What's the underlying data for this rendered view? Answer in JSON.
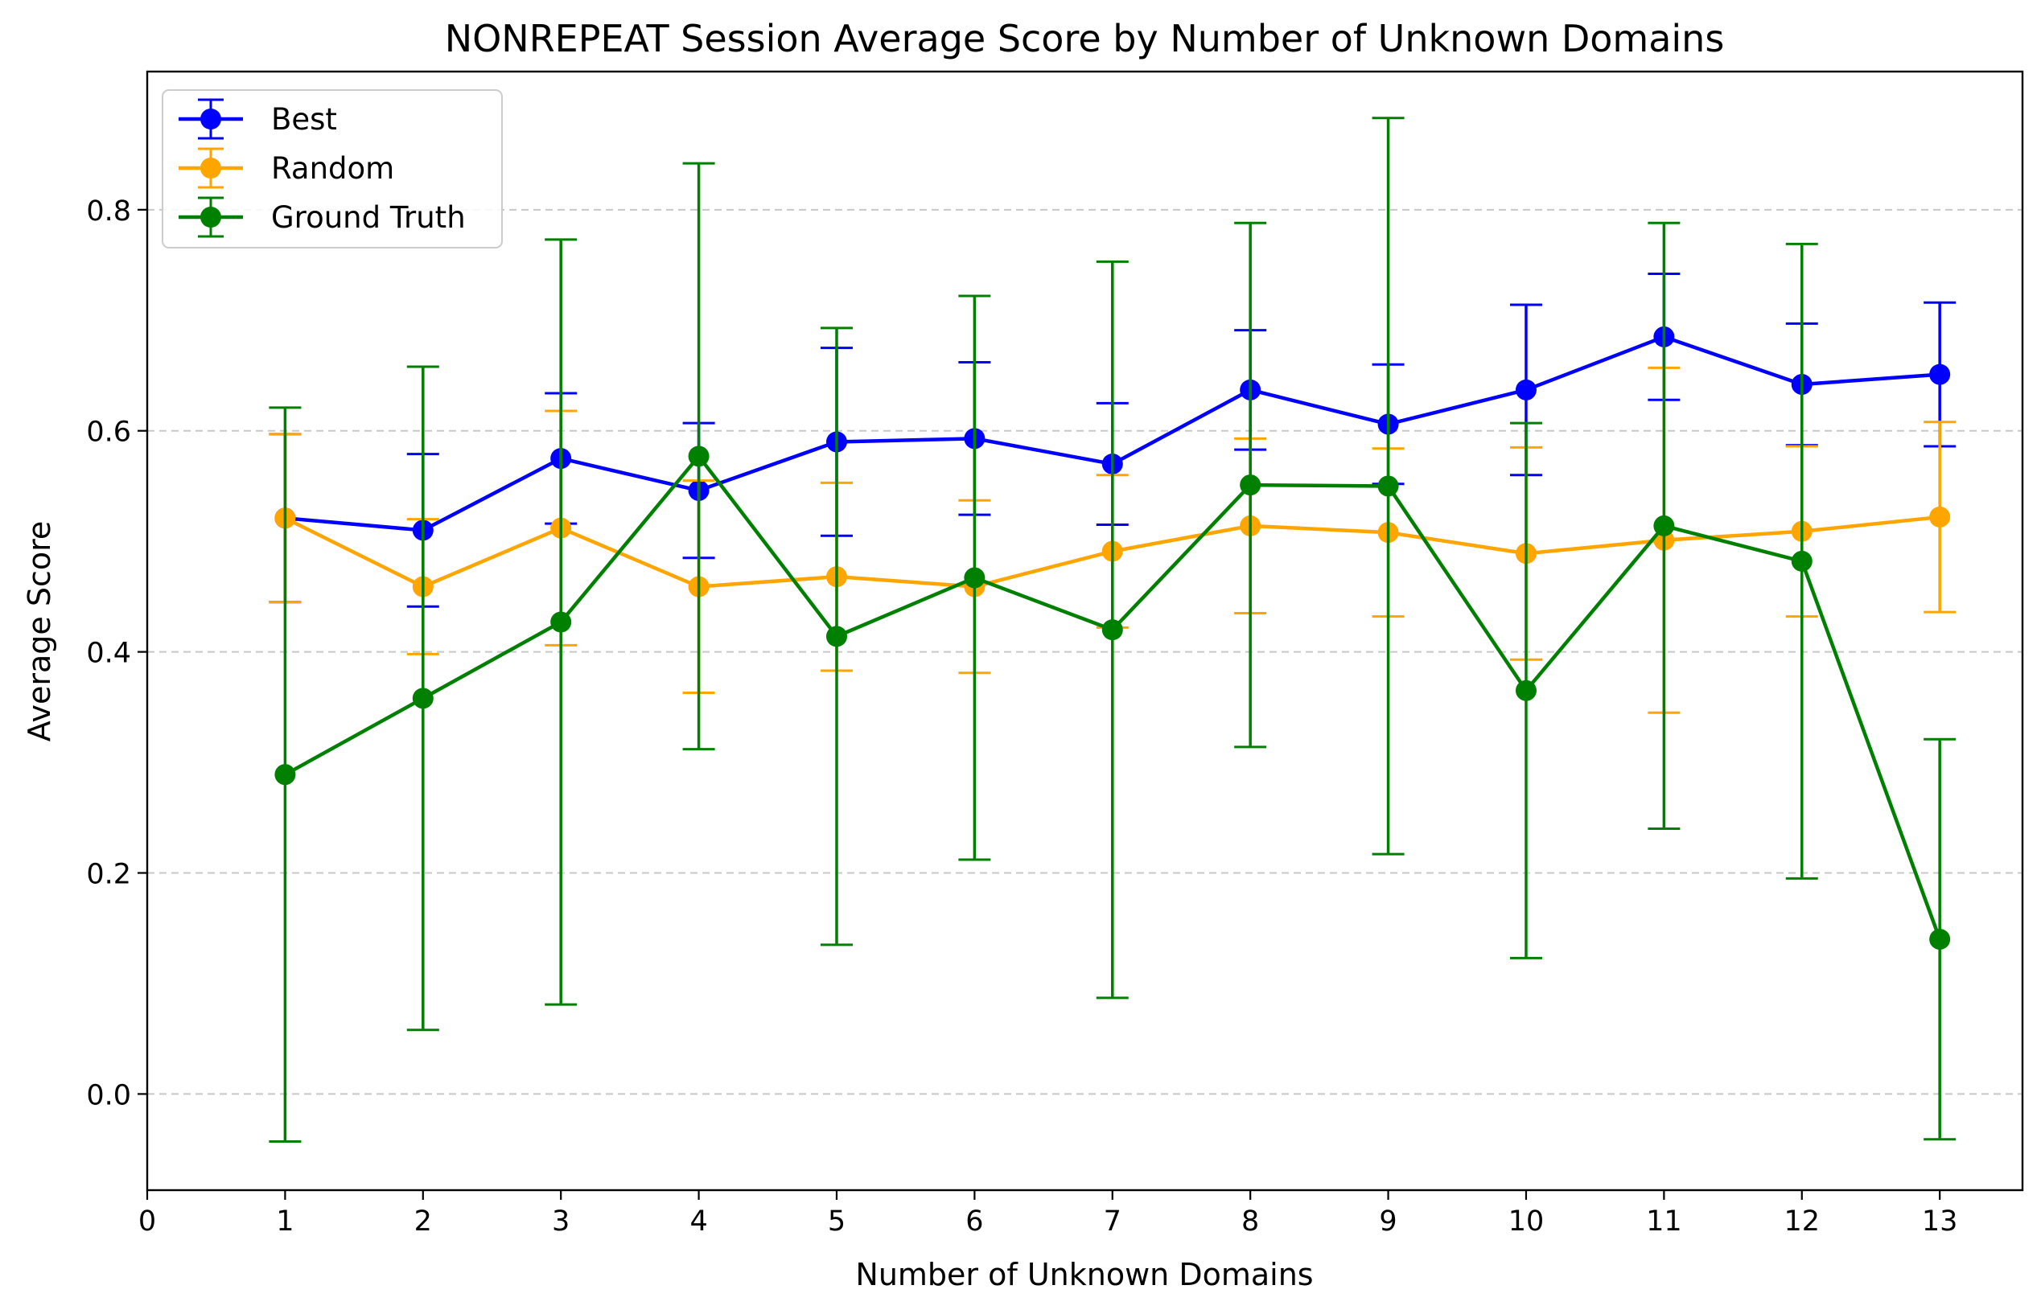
{
  "chart_data": {
    "type": "line",
    "title": "NONREPEAT Session Average Score by Number of Unknown Domains",
    "xlabel": "Number of Unknown Domains",
    "ylabel": "Average Score",
    "xlim": [
      0,
      13.6
    ],
    "ylim": [
      -0.087,
      0.925
    ],
    "xticks": [
      0,
      1,
      2,
      3,
      4,
      5,
      6,
      7,
      8,
      9,
      10,
      11,
      12,
      13
    ],
    "yticks": [
      0.0,
      0.2,
      0.4,
      0.6,
      0.8
    ],
    "ytick_labels": [
      "0.0",
      "0.2",
      "0.4",
      "0.6",
      "0.8"
    ],
    "grid": "y-dashed",
    "legend_position": "top-left",
    "x": [
      1,
      2,
      3,
      4,
      5,
      6,
      7,
      8,
      9,
      10,
      11,
      12,
      13
    ],
    "series": [
      {
        "name": "Best",
        "color": "#0000ff",
        "values": [
          0.521,
          0.51,
          0.575,
          0.546,
          0.59,
          0.593,
          0.57,
          0.637,
          0.606,
          0.637,
          0.685,
          0.642,
          0.651
        ],
        "errors": [
          0.076,
          0.069,
          0.059,
          0.061,
          0.085,
          0.069,
          0.055,
          0.054,
          0.054,
          0.077,
          0.057,
          0.055,
          0.065
        ]
      },
      {
        "name": "Random",
        "color": "#ffa500",
        "values": [
          0.521,
          0.459,
          0.512,
          0.459,
          0.468,
          0.459,
          0.491,
          0.514,
          0.508,
          0.489,
          0.501,
          0.509,
          0.522
        ],
        "errors": [
          0.076,
          0.061,
          0.106,
          0.096,
          0.085,
          0.078,
          0.069,
          0.079,
          0.076,
          0.096,
          0.156,
          0.077,
          0.086
        ]
      },
      {
        "name": "Ground Truth",
        "color": "#008000",
        "values": [
          0.289,
          0.358,
          0.427,
          0.577,
          0.414,
          0.467,
          0.42,
          0.551,
          0.55,
          0.365,
          0.514,
          0.482,
          0.14
        ],
        "errors": [
          0.332,
          0.3,
          0.346,
          0.265,
          0.279,
          0.255,
          0.333,
          0.237,
          0.333,
          0.242,
          0.274,
          0.287,
          0.181
        ]
      }
    ]
  }
}
